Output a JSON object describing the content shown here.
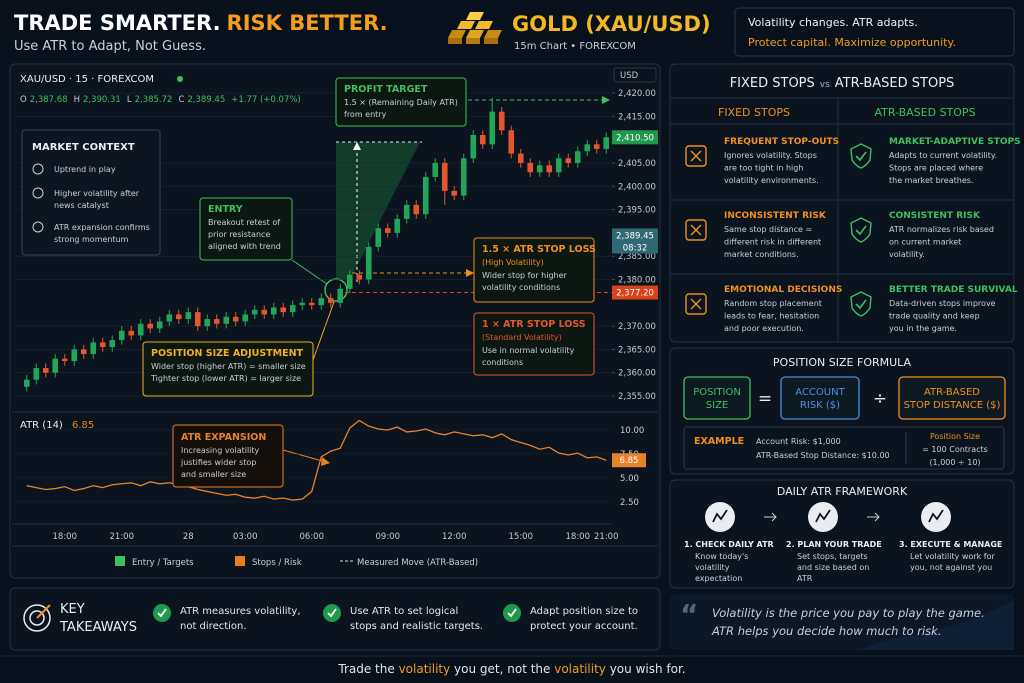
{
  "header": {
    "title_a": "TRADE SMARTER.",
    "title_b": "RISK BETTER.",
    "subtitle": "Use ATR to Adapt, Not Guess.",
    "asset": "GOLD (XAU/USD)",
    "asset_sub": "15m Chart • FOREXCOM",
    "tagline": [
      "Volatility changes. ATR adapts.",
      "Protect capital. Maximize opportunity."
    ]
  },
  "chart_data": [
    {
      "type": "candlestick",
      "symbol": "XAU/USD · 15 · FOREXCOM",
      "ohlc": [
        {
          "key": "O",
          "value": "2,387.68"
        },
        {
          "key": "H",
          "value": "2,390.31"
        },
        {
          "key": "L",
          "value": "2,385.72"
        },
        {
          "key": "C",
          "value": "2,389.45"
        }
      ],
      "change": "+1.77 (+0.07%)",
      "currency": "USD",
      "categories": [
        null,
        null,
        null,
        null,
        "18:00",
        null,
        null,
        null,
        null,
        null,
        "21:00",
        null,
        null,
        null,
        null,
        null,
        null,
        "28",
        null,
        null,
        null,
        null,
        null,
        "03:00",
        null,
        null,
        null,
        null,
        null,
        null,
        "06:00",
        null,
        null,
        null,
        null,
        null,
        null,
        null,
        "09:00",
        null,
        null,
        null,
        null,
        null,
        null,
        "12:00",
        null,
        null,
        null,
        null,
        null,
        null,
        "15:00",
        null,
        null,
        null,
        null,
        null,
        "18:00",
        null,
        null,
        "21:00"
      ],
      "open": [
        2357,
        2358.5,
        2361,
        2360,
        2363,
        2362.5,
        2365,
        2364,
        2366.5,
        2365.5,
        2367,
        2369,
        2368,
        2370.5,
        2369.5,
        2371,
        2372.5,
        2371.5,
        2373,
        2370,
        2371.5,
        2370.5,
        2372,
        2371,
        2372.5,
        2373.5,
        2372.5,
        2374,
        2373,
        2374.5,
        2375,
        2374.5,
        2376,
        2375,
        2378,
        2381,
        2380,
        2387,
        2391,
        2390,
        2393,
        2396,
        2394,
        2402,
        2405,
        2399,
        2398,
        2406,
        2411,
        2409,
        2416,
        2412,
        2407,
        2405,
        2403,
        2404.5,
        2403,
        2406,
        2405,
        2407.5,
        2409,
        2408
      ],
      "high": [
        2359.5,
        2362,
        2362,
        2364,
        2364,
        2366,
        2366,
        2367.5,
        2367.5,
        2368,
        2370,
        2370,
        2371.5,
        2371.5,
        2372,
        2373.5,
        2373.5,
        2374,
        2374,
        2372.5,
        2372.5,
        2373,
        2373,
        2373.5,
        2374.5,
        2374.5,
        2375,
        2375,
        2375.5,
        2376,
        2376,
        2377,
        2377,
        2379,
        2382,
        2382,
        2388,
        2392,
        2392,
        2394,
        2397,
        2397,
        2403,
        2406,
        2406,
        2400,
        2407,
        2412,
        2412,
        2419,
        2417,
        2413,
        2408,
        2406,
        2405.5,
        2405.5,
        2407,
        2407,
        2408.5,
        2410,
        2410,
        2411.5
      ],
      "low": [
        2356,
        2357.5,
        2359,
        2359,
        2361.5,
        2361.5,
        2363,
        2363,
        2364.5,
        2364.5,
        2366,
        2367,
        2367,
        2368.5,
        2368.5,
        2370,
        2370.5,
        2370.5,
        2369,
        2369,
        2369.5,
        2369.5,
        2370,
        2370,
        2371.5,
        2371.5,
        2371.5,
        2372,
        2372,
        2373.5,
        2373.5,
        2373.5,
        2374,
        2374,
        2377,
        2379,
        2379,
        2386,
        2389,
        2389,
        2392,
        2393,
        2393,
        2401,
        2396,
        2397,
        2397,
        2405,
        2408,
        2408,
        2411,
        2406,
        2404,
        2402,
        2402,
        2402,
        2402,
        2404,
        2404,
        2406.5,
        2407,
        2407
      ],
      "close": [
        2358.5,
        2361,
        2360,
        2363,
        2362.5,
        2365,
        2364,
        2366.5,
        2365.5,
        2367,
        2369,
        2368,
        2370.5,
        2369.5,
        2371,
        2372.5,
        2371.5,
        2373,
        2370,
        2371.5,
        2370.5,
        2372,
        2371,
        2372.5,
        2373.5,
        2372.5,
        2374,
        2373,
        2374.5,
        2375,
        2374.5,
        2376,
        2375,
        2378,
        2381,
        2380,
        2387,
        2391,
        2390,
        2393,
        2396,
        2394,
        2402,
        2405,
        2399,
        2398,
        2406,
        2411,
        2409,
        2416,
        2412,
        2407,
        2405,
        2403,
        2404.5,
        2403,
        2406,
        2405,
        2407.5,
        2409,
        2408,
        2410.5
      ],
      "up_color": "#22a559",
      "down_color": "#e4572e",
      "ylim": [
        2352,
        2422
      ],
      "yticks": [
        {
          "value": 2420,
          "label": "2,420.00"
        },
        {
          "value": 2415,
          "label": "2,415.00"
        },
        {
          "value": 2405,
          "label": "2,405.00"
        },
        {
          "value": 2400,
          "label": "2,400.00"
        },
        {
          "value": 2395,
          "label": "2,395.00"
        },
        {
          "value": 2385,
          "label": "2,385.00"
        },
        {
          "value": 2380,
          "label": "2,380.00"
        },
        {
          "value": 2370,
          "label": "2,370.00"
        },
        {
          "value": 2365,
          "label": "2,365.00"
        },
        {
          "value": 2360,
          "label": "2,360.00"
        },
        {
          "value": 2355,
          "label": "2,355.00"
        }
      ],
      "grid": true,
      "price_tags": [
        {
          "value": 2410.5,
          "label": "2,410.50",
          "color": "#1f9a4d"
        },
        {
          "value": 2389.45,
          "label": "2,389.45",
          "sub": "08:32",
          "color": "#2f6a72"
        },
        {
          "value": 2377.2,
          "label": "2,377.20",
          "color": "#d8421c"
        }
      ],
      "context": {
        "title": "MARKET CONTEXT",
        "items": [
          [
            "Uptrend in play"
          ],
          [
            "Higher volatility after",
            "news catalyst"
          ],
          [
            "ATR expansion confirms",
            "strong momentum"
          ]
        ]
      },
      "annotations": [
        {
          "title": "PROFIT TARGET",
          "lines": [
            "1.5 × (Remaining Daily ATR)",
            "from entry"
          ],
          "color": "#3fbf5f"
        },
        {
          "title": "ENTRY",
          "lines": [
            "Breakout retest of",
            "prior resistance",
            "aligned with trend"
          ],
          "color": "#3fbf5f"
        },
        {
          "title": "1.5 × ATR STOP LOSS",
          "subtitle": "(High Volatility)",
          "lines": [
            "Wider stop for higher",
            "volatility conditions"
          ],
          "color": "#f0901e"
        },
        {
          "title": "1 × ATR STOP LOSS",
          "subtitle": "(Standard Volatility)",
          "lines": [
            "Use in normal volatility",
            "conditions"
          ],
          "color": "#e4572e"
        },
        {
          "title": "POSITION SIZE ADJUSTMENT",
          "lines": [
            "Wider stop (higher ATR) = smaller size",
            "Tighter stop (lower ATR) = larger size"
          ],
          "color": "#f0b020"
        }
      ],
      "legend": [
        {
          "name": "Entry / Targets",
          "color": "#3fbf5f"
        },
        {
          "name": "Stops / Risk",
          "color": "#f07a1e"
        },
        {
          "name": "Measured Move (ATR-Based)",
          "style": "dashed"
        }
      ]
    },
    {
      "type": "line",
      "title": "ATR (14)",
      "color": "#e8822a",
      "values": [
        4.2,
        4.0,
        3.8,
        3.9,
        4.1,
        3.7,
        3.9,
        4.2,
        4.0,
        4.3,
        4.4,
        4.5,
        4.2,
        4.6,
        4.4,
        4.5,
        4.3,
        4.1,
        3.8,
        3.6,
        3.4,
        3.2,
        3.3,
        3.0,
        2.9,
        3.1,
        2.8,
        2.9,
        2.7,
        2.8,
        3.6,
        7.2,
        7.8,
        8.1,
        10.2,
        11.0,
        10.4,
        10.1,
        10.0,
        10.3,
        9.8,
        9.9,
        10.1,
        9.7,
        9.5,
        9.8,
        9.6,
        9.4,
        9.5,
        9.2,
        9.6,
        9.0,
        8.7,
        8.4,
        8.0,
        8.2,
        7.6,
        7.4,
        7.6,
        7.1,
        7.2,
        6.85
      ],
      "ylim": [
        1,
        12
      ],
      "yticks": [
        {
          "value": 2.5,
          "label": "2.50"
        },
        {
          "value": 5,
          "label": "5.00"
        },
        {
          "value": 7.5,
          "label": "7.50"
        },
        {
          "value": 10,
          "label": "10.00"
        }
      ],
      "annotation": {
        "title": "ATR EXPANSION",
        "lines": [
          "Increasing volatility",
          "justifies wider stop",
          "and smaller size"
        ]
      }
    }
  ],
  "comparison": {
    "title_left": "FIXED STOPS",
    "vs": "vs",
    "title_right": "ATR-BASED STOPS",
    "columns": [
      {
        "header": "FIXED STOPS",
        "color": "#f0901e",
        "rows": [
          {
            "title": "FREQUENT STOP-OUTS",
            "lines": [
              "Ignores volatility. Stops",
              "are too tight in high",
              "volatility environments."
            ]
          },
          {
            "title": "INCONSISTENT RISK",
            "lines": [
              "Same stop distance =",
              "different risk in different",
              "market conditions."
            ]
          },
          {
            "title": "EMOTIONAL DECISIONS",
            "lines": [
              "Random stop placement",
              "leads to fear, hesitation",
              "and poor execution."
            ]
          }
        ]
      },
      {
        "header": "ATR-BASED STOPS",
        "color": "#3fbf5f",
        "rows": [
          {
            "title": "MARKET-ADAPTIVE STOPS",
            "lines": [
              "Adapts to current volatility.",
              "Stops are placed where",
              "the market breathes."
            ]
          },
          {
            "title": "CONSISTENT RISK",
            "lines": [
              "ATR normalizes risk based",
              "on current market",
              "volatility."
            ]
          },
          {
            "title": "BETTER TRADE SURVIVAL",
            "lines": [
              "Data-driven stops improve",
              "trade quality and keep",
              "you in the game."
            ]
          }
        ]
      }
    ]
  },
  "formula": {
    "title": "POSITION SIZE FORMULA",
    "terms": [
      {
        "lines": [
          "POSITION",
          "SIZE"
        ],
        "color": "#3fbf5f"
      },
      {
        "lines": [
          "ACCOUNT",
          "RISK ($)"
        ],
        "color": "#4a8fe0"
      },
      {
        "lines": [
          "ATR-BASED",
          "STOP DISTANCE ($)"
        ],
        "color": "#f0901e"
      }
    ],
    "operators": [
      "=",
      "÷"
    ],
    "example": {
      "label": "EXAMPLE",
      "lines": [
        "Account Risk: $1,000",
        "ATR-Based Stop Distance: $10.00"
      ],
      "result": [
        "Position Size",
        "= 100 Contracts",
        "(1,000 ÷ 10)"
      ]
    }
  },
  "framework": {
    "title": "DAILY ATR FRAMEWORK",
    "steps": [
      {
        "title": "1. CHECK DAILY ATR",
        "lines": [
          "Know today's",
          "volatility",
          "expectation"
        ]
      },
      {
        "title": "2. PLAN YOUR TRADE",
        "lines": [
          "Set stops, targets",
          "and size based on",
          "ATR"
        ]
      },
      {
        "title": "3. EXECUTE & MANAGE",
        "lines": [
          "Let volatility work for",
          "you, not against you"
        ]
      }
    ]
  },
  "takeaways": {
    "title": [
      "KEY",
      "TAKEAWAYS"
    ],
    "items": [
      [
        "ATR measures volatility,",
        "not direction."
      ],
      [
        "Use ATR to set logical",
        "stops and realistic targets."
      ],
      [
        "Adapt position size to",
        "protect your account."
      ]
    ]
  },
  "quote": [
    "Volatility is the price you pay to play the game.",
    "ATR helps you decide how much to risk."
  ],
  "footer": [
    "Trade the ",
    "volatility",
    " you get, not the ",
    "volatility",
    " you wish for."
  ]
}
